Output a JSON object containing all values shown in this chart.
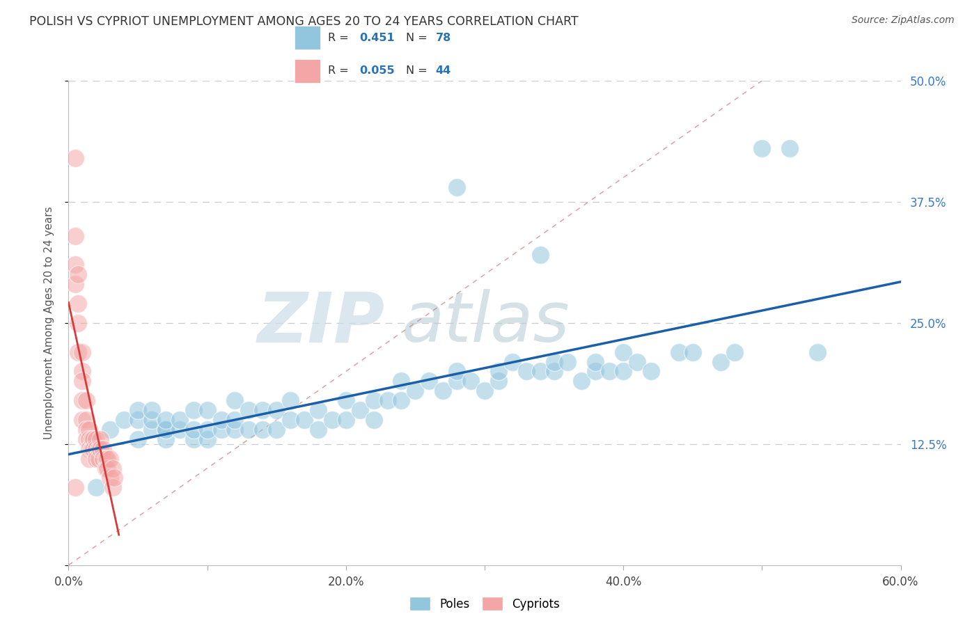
{
  "title": "POLISH VS CYPRIOT UNEMPLOYMENT AMONG AGES 20 TO 24 YEARS CORRELATION CHART",
  "source": "Source: ZipAtlas.com",
  "ylabel": "Unemployment Among Ages 20 to 24 years",
  "xlim": [
    0.0,
    0.6
  ],
  "ylim": [
    0.0,
    0.5
  ],
  "xticks": [
    0.0,
    0.1,
    0.2,
    0.3,
    0.4,
    0.5,
    0.6
  ],
  "yticks_right": [
    0.0,
    0.125,
    0.25,
    0.375,
    0.5
  ],
  "ytick_labels_right": [
    "",
    "12.5%",
    "25.0%",
    "37.5%",
    "50.0%"
  ],
  "xtick_labels": [
    "0.0%",
    "",
    "20.0%",
    "",
    "40.0%",
    "",
    "60.0%"
  ],
  "poles_color": "#92c5de",
  "cypriots_color": "#f4a6a6",
  "trend_poles_color": "#1a5fa8",
  "trend_cypriots_color": "#d63b3b",
  "poles_R": 0.451,
  "poles_N": 78,
  "cypriots_R": 0.055,
  "cypriots_N": 44,
  "watermark_zip": "ZIP",
  "watermark_atlas": "atlas",
  "watermark_color_zip": "#c8d8e8",
  "watermark_color_atlas": "#b8c8d0",
  "poles_x": [
    0.02,
    0.03,
    0.04,
    0.05,
    0.05,
    0.05,
    0.06,
    0.06,
    0.06,
    0.07,
    0.07,
    0.07,
    0.07,
    0.08,
    0.08,
    0.09,
    0.09,
    0.09,
    0.1,
    0.1,
    0.1,
    0.11,
    0.11,
    0.12,
    0.12,
    0.12,
    0.13,
    0.13,
    0.14,
    0.14,
    0.15,
    0.15,
    0.16,
    0.16,
    0.17,
    0.18,
    0.18,
    0.19,
    0.2,
    0.2,
    0.21,
    0.22,
    0.22,
    0.23,
    0.24,
    0.24,
    0.25,
    0.26,
    0.27,
    0.28,
    0.28,
    0.29,
    0.3,
    0.31,
    0.31,
    0.32,
    0.33,
    0.34,
    0.35,
    0.35,
    0.36,
    0.37,
    0.38,
    0.38,
    0.39,
    0.4,
    0.4,
    0.41,
    0.42,
    0.44,
    0.45,
    0.47,
    0.48,
    0.5,
    0.52,
    0.54,
    0.28,
    0.34
  ],
  "poles_y": [
    0.08,
    0.14,
    0.15,
    0.13,
    0.15,
    0.16,
    0.14,
    0.15,
    0.16,
    0.13,
    0.14,
    0.14,
    0.15,
    0.14,
    0.15,
    0.13,
    0.14,
    0.16,
    0.13,
    0.14,
    0.16,
    0.14,
    0.15,
    0.14,
    0.15,
    0.17,
    0.14,
    0.16,
    0.14,
    0.16,
    0.14,
    0.16,
    0.15,
    0.17,
    0.15,
    0.14,
    0.16,
    0.15,
    0.15,
    0.17,
    0.16,
    0.15,
    0.17,
    0.17,
    0.17,
    0.19,
    0.18,
    0.19,
    0.18,
    0.19,
    0.2,
    0.19,
    0.18,
    0.19,
    0.2,
    0.21,
    0.2,
    0.2,
    0.2,
    0.21,
    0.21,
    0.19,
    0.2,
    0.21,
    0.2,
    0.2,
    0.22,
    0.21,
    0.2,
    0.22,
    0.22,
    0.21,
    0.22,
    0.43,
    0.43,
    0.22,
    0.39,
    0.32
  ],
  "cypriots_x": [
    0.005,
    0.005,
    0.005,
    0.005,
    0.007,
    0.007,
    0.007,
    0.007,
    0.01,
    0.01,
    0.01,
    0.01,
    0.01,
    0.013,
    0.013,
    0.013,
    0.013,
    0.015,
    0.015,
    0.015,
    0.015,
    0.017,
    0.017,
    0.018,
    0.018,
    0.02,
    0.02,
    0.02,
    0.022,
    0.022,
    0.023,
    0.023,
    0.025,
    0.025,
    0.027,
    0.027,
    0.028,
    0.028,
    0.03,
    0.03,
    0.032,
    0.032,
    0.033,
    0.005
  ],
  "cypriots_y": [
    0.42,
    0.34,
    0.31,
    0.29,
    0.3,
    0.27,
    0.25,
    0.22,
    0.22,
    0.2,
    0.19,
    0.17,
    0.15,
    0.17,
    0.15,
    0.14,
    0.13,
    0.14,
    0.13,
    0.12,
    0.11,
    0.13,
    0.12,
    0.13,
    0.12,
    0.13,
    0.12,
    0.11,
    0.12,
    0.11,
    0.13,
    0.12,
    0.12,
    0.11,
    0.11,
    0.1,
    0.11,
    0.1,
    0.11,
    0.09,
    0.1,
    0.08,
    0.09,
    0.08
  ]
}
